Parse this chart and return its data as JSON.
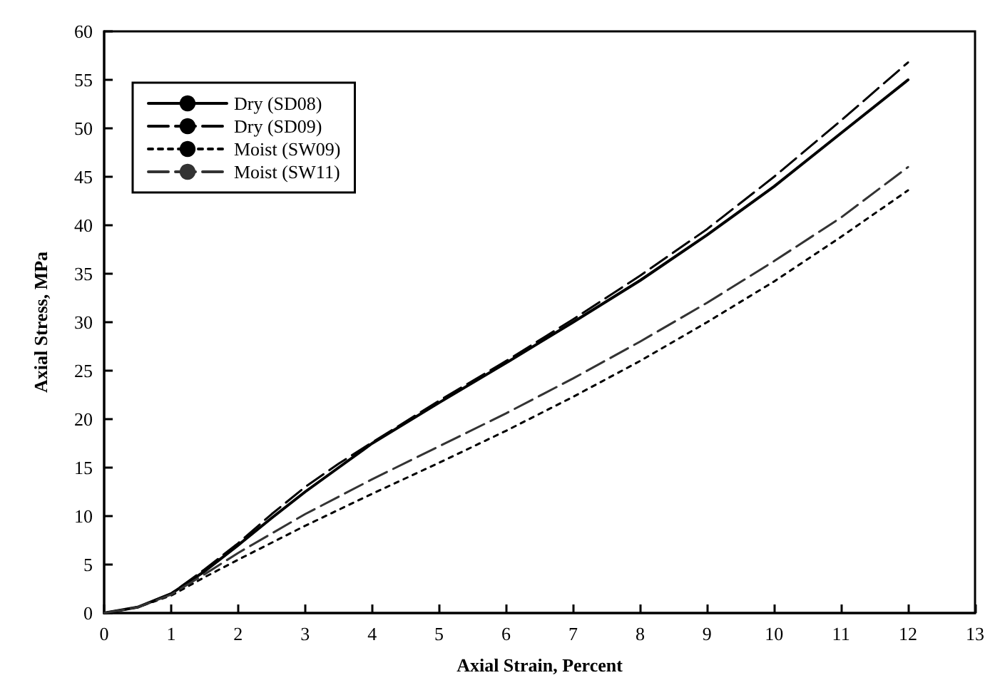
{
  "chart_data": {
    "type": "line",
    "xlabel": "Axial Strain, Percent",
    "ylabel": "Axial Stress, MPa",
    "xlim": [
      0,
      13
    ],
    "xticks": [
      0,
      1,
      2,
      3,
      4,
      5,
      6,
      7,
      8,
      9,
      10,
      11,
      12,
      13
    ],
    "ylim": [
      0,
      60
    ],
    "yticks": [
      0,
      5,
      10,
      15,
      20,
      25,
      30,
      35,
      40,
      45,
      50,
      55,
      60
    ],
    "grid": false,
    "legend": "top left",
    "marker": "none",
    "series": [
      {
        "name": "Dry (SD08)",
        "color": "#000000",
        "line_style": "solid",
        "x": [
          0,
          0.5,
          1,
          1.5,
          2,
          2.5,
          3,
          3.5,
          4,
          5,
          6,
          7,
          8,
          9,
          10,
          11,
          12
        ],
        "values": [
          0,
          0.6,
          2,
          4.3,
          7,
          9.8,
          12.5,
          15,
          17.5,
          21.7,
          25.8,
          30,
          34.3,
          39,
          44,
          49.5,
          55
        ]
      },
      {
        "name": "Dry (SD09)",
        "color": "#000000",
        "line_style": "dashed",
        "x": [
          0,
          0.5,
          1,
          1.5,
          2,
          2.5,
          3,
          3.5,
          4,
          5,
          6,
          7,
          8,
          9,
          10,
          11,
          12
        ],
        "values": [
          0,
          0.6,
          2,
          4.5,
          7.2,
          10.2,
          13,
          15.4,
          17.6,
          21.9,
          26,
          30.3,
          34.8,
          39.6,
          45,
          50.8,
          56.8
        ]
      },
      {
        "name": "Moist (SW09)",
        "color": "#000000",
        "line_style": "dotted",
        "x": [
          0,
          0.5,
          1,
          1.5,
          2,
          3,
          4,
          5,
          6,
          7,
          8,
          9,
          10,
          11,
          12
        ],
        "values": [
          0,
          0.6,
          1.8,
          3.7,
          5.5,
          9,
          12.3,
          15.5,
          18.8,
          22.3,
          26,
          30,
          34.2,
          38.8,
          43.6
        ]
      },
      {
        "name": "Moist (SW11)",
        "color": "#333333",
        "line_style": "dashed",
        "x": [
          0,
          0.5,
          1,
          1.5,
          2,
          3,
          4,
          5,
          6,
          7,
          8,
          9,
          10,
          11,
          12
        ],
        "values": [
          0,
          0.6,
          1.9,
          4,
          6.2,
          10.2,
          13.8,
          17.2,
          20.6,
          24.2,
          28,
          32,
          36.3,
          40.8,
          46
        ]
      }
    ]
  }
}
